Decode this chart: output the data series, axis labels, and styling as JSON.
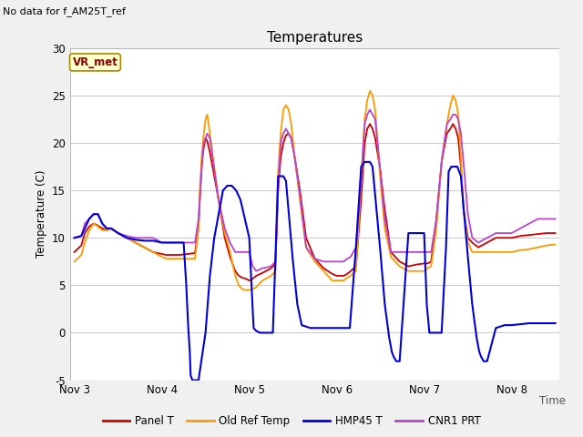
{
  "title": "Temperatures",
  "xlabel_text": "Time",
  "ylabel": "Temperature (C)",
  "ylim": [
    -5,
    30
  ],
  "yticks": [
    -5,
    0,
    5,
    10,
    15,
    20,
    25,
    30
  ],
  "fig_bg": "#f0f0f0",
  "plot_bg": "#ffffff",
  "top_left_text": "No data for f_AM25T_ref",
  "box_label": "VR_met",
  "legend": [
    "Panel T",
    "Old Ref Temp",
    "HMP45 T",
    "CNR1 PRT"
  ],
  "colors": {
    "panel_t": "#cc0000",
    "old_ref": "#ff9900",
    "hmp45": "#0000dd",
    "cnr1": "#bb44cc"
  },
  "x_ticks": [
    3,
    4,
    5,
    6,
    7,
    8
  ],
  "x_tick_labels": [
    "Nov 3",
    "Nov 4",
    "Nov 5",
    "Nov 6",
    "Nov 7",
    "Nov 8"
  ],
  "xlim": [
    2.95,
    8.55
  ],
  "panel_t_x": [
    3.0,
    3.08,
    3.12,
    3.17,
    3.22,
    3.27,
    3.32,
    3.37,
    3.42,
    3.5,
    3.6,
    3.7,
    3.8,
    3.9,
    4.0,
    4.05,
    4.1,
    4.2,
    4.3,
    4.38,
    4.42,
    4.44,
    4.46,
    4.48,
    4.5,
    4.52,
    4.55,
    4.65,
    4.72,
    4.78,
    4.84,
    4.88,
    4.92,
    4.96,
    5.0,
    5.04,
    5.08,
    5.15,
    5.25,
    5.3,
    5.33,
    5.36,
    5.39,
    5.42,
    5.45,
    5.48,
    5.52,
    5.58,
    5.65,
    5.75,
    5.85,
    5.95,
    6.0,
    6.04,
    6.08,
    6.12,
    6.16,
    6.22,
    6.28,
    6.32,
    6.35,
    6.38,
    6.41,
    6.44,
    6.5,
    6.55,
    6.62,
    6.72,
    6.82,
    6.92,
    7.0,
    7.04,
    7.08,
    7.14,
    7.2,
    7.26,
    7.3,
    7.33,
    7.36,
    7.39,
    7.42,
    7.45,
    7.5,
    7.55,
    7.62,
    7.72,
    7.82,
    7.92,
    8.0,
    8.1,
    8.2,
    8.3,
    8.4,
    8.5
  ],
  "panel_t_y": [
    8.5,
    9.2,
    10.5,
    11.2,
    11.5,
    11.3,
    11.0,
    10.8,
    11.0,
    10.5,
    10.0,
    9.5,
    9.0,
    8.5,
    8.3,
    8.2,
    8.2,
    8.2,
    8.3,
    8.4,
    11.0,
    15.0,
    18.0,
    19.5,
    20.5,
    20.2,
    19.0,
    14.0,
    10.0,
    8.0,
    6.5,
    6.0,
    5.8,
    5.7,
    5.5,
    5.7,
    6.0,
    6.3,
    6.8,
    7.3,
    15.0,
    18.5,
    20.0,
    20.8,
    21.0,
    20.5,
    18.5,
    15.0,
    10.0,
    7.8,
    6.8,
    6.2,
    6.0,
    6.0,
    6.0,
    6.2,
    6.5,
    7.0,
    14.0,
    20.0,
    21.5,
    22.0,
    21.5,
    20.5,
    17.0,
    13.0,
    8.5,
    7.5,
    7.0,
    7.2,
    7.3,
    7.3,
    7.5,
    12.0,
    18.0,
    21.0,
    21.5,
    22.0,
    21.5,
    20.5,
    17.5,
    13.0,
    10.0,
    9.5,
    9.0,
    9.5,
    10.0,
    10.0,
    10.0,
    10.2,
    10.3,
    10.4,
    10.5,
    10.5
  ],
  "old_ref_x": [
    3.0,
    3.08,
    3.12,
    3.17,
    3.22,
    3.27,
    3.32,
    3.37,
    3.42,
    3.5,
    3.6,
    3.7,
    3.8,
    3.9,
    4.0,
    4.05,
    4.1,
    4.2,
    4.3,
    4.38,
    4.42,
    4.44,
    4.46,
    4.48,
    4.5,
    4.52,
    4.55,
    4.65,
    4.72,
    4.78,
    4.84,
    4.88,
    4.92,
    4.96,
    5.0,
    5.04,
    5.08,
    5.15,
    5.25,
    5.3,
    5.33,
    5.36,
    5.39,
    5.42,
    5.45,
    5.48,
    5.52,
    5.58,
    5.65,
    5.75,
    5.85,
    5.95,
    6.0,
    6.04,
    6.08,
    6.12,
    6.16,
    6.22,
    6.28,
    6.32,
    6.35,
    6.38,
    6.41,
    6.44,
    6.5,
    6.55,
    6.62,
    6.72,
    6.82,
    6.92,
    7.0,
    7.04,
    7.08,
    7.14,
    7.2,
    7.26,
    7.3,
    7.33,
    7.36,
    7.39,
    7.42,
    7.45,
    7.5,
    7.55,
    7.62,
    7.72,
    7.82,
    7.92,
    8.0,
    8.1,
    8.2,
    8.3,
    8.4,
    8.5
  ],
  "old_ref_y": [
    7.5,
    8.2,
    9.5,
    10.8,
    11.5,
    11.2,
    10.8,
    10.8,
    11.0,
    10.5,
    10.0,
    9.5,
    9.0,
    8.5,
    8.0,
    7.8,
    7.8,
    7.8,
    7.8,
    7.8,
    11.0,
    16.0,
    19.0,
    21.0,
    22.5,
    23.0,
    21.0,
    14.0,
    10.5,
    8.5,
    6.0,
    5.0,
    4.6,
    4.5,
    4.5,
    4.6,
    4.8,
    5.5,
    6.0,
    6.5,
    17.0,
    21.0,
    23.5,
    24.0,
    23.5,
    22.0,
    18.5,
    14.0,
    9.0,
    7.5,
    6.5,
    5.5,
    5.5,
    5.5,
    5.5,
    5.8,
    6.0,
    6.5,
    16.0,
    22.5,
    24.5,
    25.5,
    25.0,
    23.5,
    16.0,
    11.0,
    8.0,
    7.0,
    6.5,
    6.5,
    6.5,
    6.8,
    7.0,
    11.0,
    18.0,
    22.0,
    24.0,
    25.0,
    24.5,
    23.0,
    18.5,
    13.0,
    9.5,
    8.5,
    8.5,
    8.5,
    8.5,
    8.5,
    8.5,
    8.7,
    8.8,
    9.0,
    9.2,
    9.3
  ],
  "hmp45_x": [
    3.0,
    3.08,
    3.12,
    3.17,
    3.22,
    3.27,
    3.32,
    3.37,
    3.42,
    3.5,
    3.6,
    3.7,
    3.8,
    3.9,
    4.0,
    4.05,
    4.1,
    4.15,
    4.2,
    4.25,
    4.28,
    4.3,
    4.32,
    4.33,
    4.35,
    4.38,
    4.42,
    4.5,
    4.55,
    4.6,
    4.7,
    4.75,
    4.8,
    4.85,
    4.9,
    4.95,
    5.0,
    5.05,
    5.08,
    5.12,
    5.2,
    5.27,
    5.3,
    5.33,
    5.36,
    5.39,
    5.42,
    5.5,
    5.55,
    5.6,
    5.7,
    5.8,
    5.9,
    6.0,
    6.03,
    6.06,
    6.09,
    6.15,
    6.22,
    6.28,
    6.32,
    6.35,
    6.38,
    6.41,
    6.5,
    6.55,
    6.6,
    6.63,
    6.65,
    6.68,
    6.72,
    6.82,
    6.92,
    7.0,
    7.03,
    7.06,
    7.1,
    7.15,
    7.2,
    7.25,
    7.28,
    7.31,
    7.35,
    7.38,
    7.42,
    7.5,
    7.55,
    7.6,
    7.63,
    7.65,
    7.68,
    7.72,
    7.82,
    7.92,
    8.0,
    8.1,
    8.2,
    8.3,
    8.4,
    8.5
  ],
  "hmp45_y": [
    10.0,
    10.2,
    11.0,
    12.0,
    12.5,
    12.5,
    11.5,
    11.0,
    11.0,
    10.5,
    10.0,
    9.8,
    9.7,
    9.7,
    9.5,
    9.5,
    9.5,
    9.5,
    9.5,
    9.5,
    5.0,
    1.0,
    -2.0,
    -4.5,
    -5.0,
    -5.0,
    -5.0,
    0.0,
    6.0,
    10.0,
    15.0,
    15.5,
    15.5,
    15.0,
    14.0,
    12.0,
    10.0,
    0.5,
    0.2,
    0.0,
    0.0,
    0.0,
    8.0,
    16.5,
    16.5,
    16.5,
    16.0,
    7.5,
    3.0,
    0.8,
    0.5,
    0.5,
    0.5,
    0.5,
    0.5,
    0.5,
    0.5,
    0.5,
    9.0,
    17.5,
    18.0,
    18.0,
    18.0,
    17.5,
    8.5,
    3.0,
    -0.5,
    -2.0,
    -2.5,
    -3.0,
    -3.0,
    10.5,
    10.5,
    10.5,
    3.0,
    0.0,
    0.0,
    0.0,
    0.0,
    9.0,
    17.0,
    17.5,
    17.5,
    17.5,
    16.5,
    8.0,
    3.0,
    -0.5,
    -2.0,
    -2.5,
    -3.0,
    -3.0,
    0.5,
    0.8,
    0.8,
    0.9,
    1.0,
    1.0,
    1.0,
    1.0
  ],
  "cnr1_x": [
    3.0,
    3.08,
    3.12,
    3.17,
    3.22,
    3.27,
    3.32,
    3.37,
    3.42,
    3.5,
    3.6,
    3.7,
    3.8,
    3.9,
    4.0,
    4.05,
    4.1,
    4.2,
    4.3,
    4.38,
    4.42,
    4.44,
    4.46,
    4.48,
    4.5,
    4.52,
    4.55,
    4.65,
    4.72,
    4.78,
    4.84,
    4.88,
    4.92,
    4.96,
    5.0,
    5.04,
    5.08,
    5.15,
    5.25,
    5.3,
    5.33,
    5.36,
    5.39,
    5.42,
    5.45,
    5.48,
    5.52,
    5.58,
    5.65,
    5.75,
    5.85,
    5.95,
    6.0,
    6.04,
    6.08,
    6.12,
    6.16,
    6.22,
    6.28,
    6.32,
    6.35,
    6.38,
    6.41,
    6.44,
    6.5,
    6.55,
    6.62,
    6.72,
    6.82,
    6.92,
    7.0,
    7.04,
    7.08,
    7.14,
    7.2,
    7.26,
    7.3,
    7.33,
    7.36,
    7.39,
    7.42,
    7.45,
    7.5,
    7.55,
    7.62,
    7.72,
    7.82,
    7.92,
    8.0,
    8.1,
    8.2,
    8.3,
    8.4,
    8.5
  ],
  "cnr1_y": [
    10.0,
    10.2,
    11.5,
    12.0,
    12.5,
    12.5,
    11.5,
    11.0,
    11.0,
    10.5,
    10.2,
    10.0,
    10.0,
    10.0,
    9.5,
    9.5,
    9.5,
    9.5,
    9.5,
    9.5,
    12.0,
    15.0,
    18.0,
    20.0,
    20.5,
    21.0,
    20.5,
    14.0,
    11.0,
    9.5,
    8.5,
    8.5,
    8.5,
    8.5,
    8.5,
    7.0,
    6.5,
    6.8,
    7.0,
    7.5,
    15.0,
    20.0,
    21.0,
    21.5,
    21.0,
    20.5,
    18.5,
    14.5,
    9.0,
    7.8,
    7.5,
    7.5,
    7.5,
    7.5,
    7.5,
    7.8,
    8.0,
    9.0,
    16.0,
    22.0,
    23.0,
    23.5,
    23.0,
    22.5,
    17.0,
    12.0,
    8.5,
    8.5,
    8.5,
    8.5,
    8.5,
    8.5,
    8.5,
    12.0,
    18.0,
    22.0,
    22.5,
    23.0,
    23.0,
    22.5,
    21.0,
    18.0,
    12.5,
    10.0,
    9.5,
    10.0,
    10.5,
    10.5,
    10.5,
    11.0,
    11.5,
    12.0,
    12.0,
    12.0
  ]
}
